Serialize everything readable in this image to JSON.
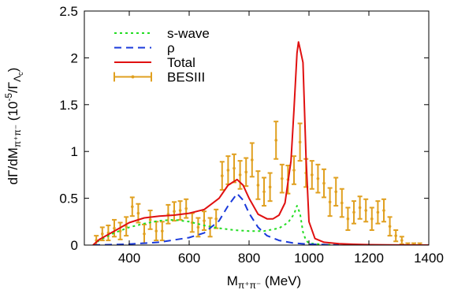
{
  "chart_data": {
    "type": "line",
    "xlabel": {
      "base": "M",
      "sub": "π⁺π⁻",
      "unit": " (MeV)"
    },
    "ylabel": {
      "base": "dΓ/dM",
      "sub": "π⁺π⁻",
      "mid": " (10",
      "sup": "-5",
      "slash": "/Γ",
      "sub2": "Λ",
      "subsub": "c",
      "close": ")"
    },
    "xlim": [
      250,
      1400
    ],
    "ylim": [
      0,
      2.5
    ],
    "xticks": [
      400,
      600,
      800,
      1000,
      1200,
      1400
    ],
    "yticks": [
      0,
      0.5,
      1,
      1.5,
      2,
      2.5
    ],
    "xtick_labels": [
      "400",
      "600",
      "800",
      "1000",
      "1200",
      "1400"
    ],
    "ytick_labels": [
      "0",
      "0.5",
      "1",
      "1.5",
      "2",
      "2.5"
    ],
    "legend_position": "top-left",
    "grid": false,
    "colors": {
      "swave": "#22dd22",
      "rho": "#1a3adb",
      "total": "#e01010",
      "besiii": "#e0a020"
    },
    "series": [
      {
        "name": "s-wave",
        "style": "dotted",
        "x": [
          279,
          300,
          350,
          400,
          450,
          500,
          550,
          600,
          650,
          700,
          750,
          800,
          850,
          900,
          930,
          950,
          960,
          970,
          980,
          990,
          1000,
          1050,
          1100
        ],
        "y": [
          0,
          0.05,
          0.13,
          0.19,
          0.23,
          0.26,
          0.27,
          0.25,
          0.21,
          0.18,
          0.16,
          0.15,
          0.15,
          0.18,
          0.24,
          0.33,
          0.42,
          0.34,
          0.14,
          0.05,
          0.02,
          0.005,
          0
        ]
      },
      {
        "name": "ρ",
        "style": "dashed",
        "x": [
          279,
          300,
          400,
          500,
          600,
          650,
          700,
          730,
          760,
          780,
          800,
          830,
          860,
          900,
          950,
          1000,
          1050,
          1100
        ],
        "y": [
          0,
          0.002,
          0.01,
          0.03,
          0.08,
          0.13,
          0.26,
          0.42,
          0.55,
          0.48,
          0.34,
          0.19,
          0.1,
          0.05,
          0.02,
          0.01,
          0.005,
          0
        ]
      },
      {
        "name": "Total",
        "style": "solid",
        "x": [
          279,
          300,
          350,
          400,
          450,
          500,
          550,
          600,
          650,
          700,
          730,
          760,
          780,
          800,
          830,
          860,
          880,
          900,
          920,
          940,
          950,
          960,
          965,
          970,
          980,
          990,
          1000,
          1020,
          1050,
          1100,
          1150,
          1200,
          1300,
          1400
        ],
        "y": [
          0,
          0.06,
          0.15,
          0.24,
          0.29,
          0.31,
          0.32,
          0.34,
          0.38,
          0.5,
          0.64,
          0.7,
          0.64,
          0.5,
          0.33,
          0.28,
          0.28,
          0.32,
          0.45,
          0.9,
          1.45,
          2.05,
          2.17,
          2.1,
          1.95,
          0.95,
          0.25,
          0.07,
          0.03,
          0.015,
          0.008,
          0.004,
          0.001,
          0
        ]
      }
    ],
    "data_series": {
      "name": "BESIII",
      "x": [
        290,
        310,
        330,
        350,
        370,
        390,
        410,
        430,
        450,
        470,
        490,
        510,
        530,
        550,
        570,
        590,
        610,
        630,
        650,
        670,
        690,
        710,
        730,
        750,
        770,
        790,
        810,
        830,
        850,
        870,
        890,
        910,
        930,
        950,
        970,
        990,
        1010,
        1030,
        1050,
        1070,
        1090,
        1110,
        1130,
        1150,
        1170,
        1190,
        1210,
        1230,
        1250,
        1270,
        1290,
        1310,
        1330,
        1350,
        1370
      ],
      "y": [
        0.05,
        0.12,
        0.13,
        0.18,
        0.15,
        0.2,
        0.41,
        0.34,
        0.12,
        0.27,
        0.15,
        0.15,
        0.33,
        0.36,
        0.37,
        0.39,
        0.24,
        0.19,
        0.26,
        0.19,
        0.28,
        0.74,
        0.8,
        0.82,
        0.75,
        0.78,
        0.91,
        0.64,
        0.57,
        0.62,
        1.12,
        0.71,
        0.7,
        0.8,
        1.1,
        0.77,
        0.75,
        0.71,
        0.66,
        0.46,
        0.57,
        0.45,
        0.28,
        0.35,
        0.4,
        0.37,
        0.28,
        0.35,
        0.37,
        0.2,
        0.1,
        0.05,
        0,
        0,
        0
      ],
      "err": [
        0.05,
        0.07,
        0.08,
        0.09,
        0.09,
        0.1,
        0.1,
        0.1,
        0.1,
        0.1,
        0.1,
        0.1,
        0.1,
        0.1,
        0.1,
        0.1,
        0.1,
        0.1,
        0.1,
        0.1,
        0.1,
        0.15,
        0.15,
        0.15,
        0.15,
        0.15,
        0.18,
        0.15,
        0.15,
        0.15,
        0.2,
        0.15,
        0.15,
        0.15,
        0.2,
        0.15,
        0.15,
        0.15,
        0.15,
        0.15,
        0.15,
        0.15,
        0.12,
        0.12,
        0.12,
        0.12,
        0.12,
        0.12,
        0.12,
        0.1,
        0.06,
        0.04,
        0.02,
        0.02,
        0.02
      ]
    },
    "legend": [
      {
        "label": "s-wave",
        "key": "swave"
      },
      {
        "label": "ρ",
        "key": "rho"
      },
      {
        "label": "Total",
        "key": "total"
      },
      {
        "label": "BESIII",
        "key": "besiii"
      }
    ]
  }
}
